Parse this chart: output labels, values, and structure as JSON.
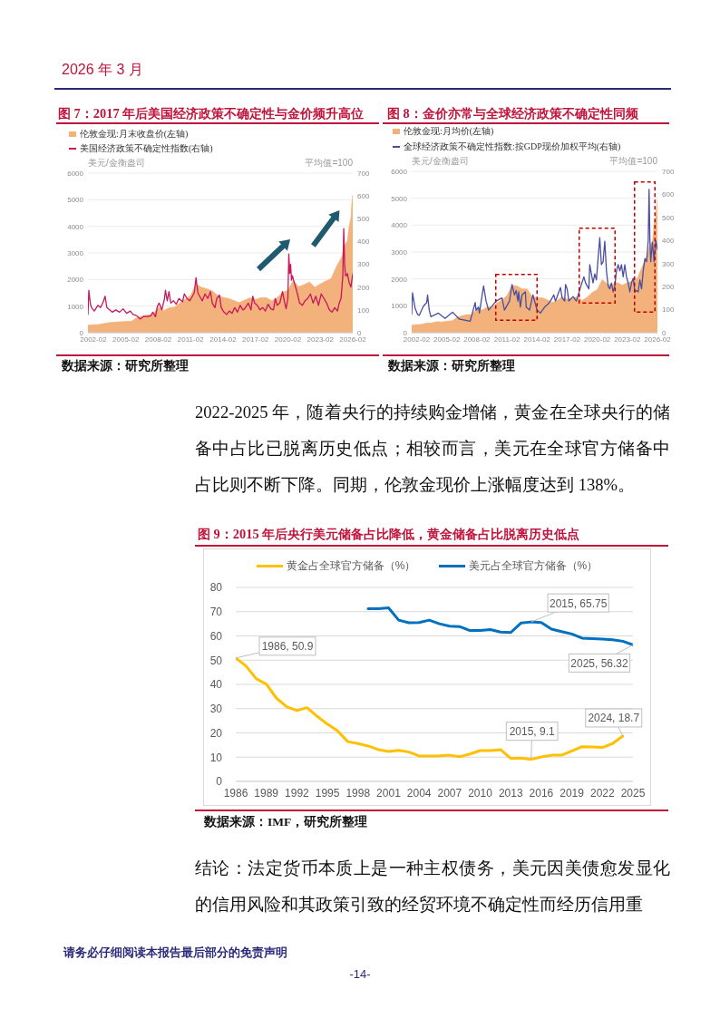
{
  "chart_data": [
    {
      "type": "line",
      "title": "图 7：2017 年后美国经济政策不确定性与金价频升高位",
      "ylabel": "美元/金衡盎司",
      "y2label": "平均值=100",
      "legend": "top left",
      "grid": "y",
      "marker": "none",
      "xlim": [
        "2001-08",
        "2026-02"
      ],
      "xticks": [
        "2002-02",
        "2005-02",
        "2008-02",
        "2011-02",
        "2014-02",
        "2017-02",
        "2020-02",
        "2023-02",
        "2026-02"
      ],
      "ylim": [
        0,
        6000
      ],
      "yticks": [
        0,
        1000,
        2000,
        3000,
        4000,
        5000,
        6000
      ],
      "y2lim": [
        0,
        700
      ],
      "y2ticks": [
        0,
        100,
        200,
        300,
        400,
        500,
        600,
        700
      ],
      "annotations": [
        "2026 年 3 月",
        "数据来源：研究所整理"
      ],
      "series": [
        {
          "name": "伦敦金现:月末收盘价(左轴)",
          "type": "area",
          "color": "#f3b27c",
          "x": [
            "2001-08",
            "2002-02",
            "2002-08",
            "2003-02",
            "2003-08",
            "2004-02",
            "2004-08",
            "2005-02",
            "2005-08",
            "2006-02",
            "2006-08",
            "2007-02",
            "2007-08",
            "2008-02",
            "2008-08",
            "2009-02",
            "2009-08",
            "2010-02",
            "2010-08",
            "2011-02",
            "2011-08",
            "2012-02",
            "2012-08",
            "2013-02",
            "2013-08",
            "2014-02",
            "2014-08",
            "2015-02",
            "2015-08",
            "2016-02",
            "2016-08",
            "2017-02",
            "2017-08",
            "2018-02",
            "2018-08",
            "2019-02",
            "2019-08",
            "2020-02",
            "2020-08",
            "2021-02",
            "2021-08",
            "2022-02",
            "2022-08",
            "2023-02",
            "2023-08",
            "2024-02",
            "2024-08",
            "2025-02",
            "2025-05",
            "2025-08",
            "2025-10",
            "2025-12",
            "2026-01",
            "2026-02"
          ],
          "values": [
            280,
            300,
            310,
            350,
            380,
            400,
            410,
            430,
            430,
            560,
            620,
            670,
            670,
            970,
            830,
            940,
            960,
            1120,
            1250,
            1410,
            1830,
            1710,
            1650,
            1580,
            1400,
            1330,
            1290,
            1210,
            1130,
            1230,
            1310,
            1250,
            1320,
            1320,
            1200,
            1310,
            1520,
            1590,
            1970,
            1730,
            1810,
            1910,
            1710,
            1830,
            1940,
            2040,
            2500,
            2860,
            3290,
            3450,
            4000,
            4320,
            4900,
            5200
          ]
        },
        {
          "name": "美国经济政策不确定性指数(右轴)",
          "axis": "y2",
          "color": "#c8175d",
          "x": [
            "2001-08",
            "2001-09",
            "2001-10",
            "2001-11",
            "2001-12",
            "2002-03",
            "2002-07",
            "2002-10",
            "2003-01",
            "2003-03",
            "2003-05",
            "2003-08",
            "2003-11",
            "2004-03",
            "2004-07",
            "2004-11",
            "2005-03",
            "2005-07",
            "2005-10",
            "2006-02",
            "2006-06",
            "2006-10",
            "2007-02",
            "2007-06",
            "2007-08",
            "2007-11",
            "2008-01",
            "2008-03",
            "2008-06",
            "2008-09",
            "2008-10",
            "2008-12",
            "2009-02",
            "2009-04",
            "2009-07",
            "2009-10",
            "2010-01",
            "2010-05",
            "2010-07",
            "2010-10",
            "2011-01",
            "2011-04",
            "2011-06",
            "2011-08",
            "2011-10",
            "2011-12",
            "2012-03",
            "2012-06",
            "2012-09",
            "2012-12",
            "2013-02",
            "2013-05",
            "2013-07",
            "2013-10",
            "2013-12",
            "2014-03",
            "2014-06",
            "2014-09",
            "2014-12",
            "2015-03",
            "2015-06",
            "2015-09",
            "2015-12",
            "2016-02",
            "2016-06",
            "2016-09",
            "2016-11",
            "2017-01",
            "2017-04",
            "2017-07",
            "2017-10",
            "2018-01",
            "2018-04",
            "2018-07",
            "2018-10",
            "2018-12",
            "2019-02",
            "2019-05",
            "2019-08",
            "2019-10",
            "2019-12",
            "2020-02",
            "2020-03",
            "2020-04",
            "2020-05",
            "2020-06",
            "2020-07",
            "2020-09",
            "2020-12",
            "2021-03",
            "2021-06",
            "2021-09",
            "2021-12",
            "2022-03",
            "2022-06",
            "2022-09",
            "2022-12",
            "2023-03",
            "2023-06",
            "2023-09",
            "2023-12",
            "2024-03",
            "2024-06",
            "2024-09",
            "2024-11",
            "2025-01",
            "2025-03",
            "2025-04",
            "2025-05",
            "2025-06",
            "2025-07",
            "2025-08",
            "2025-10",
            "2025-12",
            "2026-01",
            "2026-02"
          ],
          "values": [
            80,
            186,
            150,
            120,
            110,
            95,
            120,
            110,
            135,
            160,
            110,
            100,
            90,
            100,
            90,
            105,
            85,
            95,
            80,
            75,
            60,
            72,
            70,
            75,
            90,
            70,
            115,
            130,
            100,
            150,
            186,
            140,
            180,
            130,
            140,
            125,
            150,
            135,
            170,
            150,
            140,
            160,
            175,
            241,
            175,
            160,
            140,
            170,
            150,
            180,
            130,
            110,
            150,
            165,
            110,
            90,
            80,
            95,
            85,
            110,
            90,
            120,
            100,
            105,
            130,
            100,
            160,
            130,
            120,
            100,
            110,
            95,
            125,
            105,
            100,
            150,
            120,
            130,
            180,
            140,
            105,
            150,
            345,
            260,
            300,
            230,
            250,
            220,
            180,
            130,
            120,
            140,
            150,
            170,
            130,
            160,
            120,
            170,
            150,
            130,
            100,
            90,
            110,
            95,
            130,
            150,
            250,
            457,
            300,
            250,
            250,
            260,
            220,
            200,
            230,
            258
          ]
        }
      ]
    },
    {
      "type": "line",
      "title": "图 8：金价亦常与全球经济政策不确定性同频",
      "ylabel": "美元/金衡盎司",
      "y2label": "平均值=100",
      "legend": "top left",
      "grid": "y",
      "marker": "none",
      "xlim": [
        "2001-08",
        "2026-02"
      ],
      "xticks": [
        "2002-02",
        "2005-02",
        "2008-02",
        "2011-02",
        "2014-02",
        "2017-02",
        "2020-02",
        "2023-02",
        "2026-02"
      ],
      "ylim": [
        0,
        6000
      ],
      "yticks": [
        0,
        1000,
        2000,
        3000,
        4000,
        5000,
        6000
      ],
      "y2lim": [
        0,
        700
      ],
      "y2ticks": [
        0,
        100,
        200,
        300,
        400,
        500,
        600,
        700
      ],
      "annotations": [
        "数据来源：研究所整理"
      ],
      "series": [
        {
          "name": "伦敦金现:月均价(左轴)",
          "type": "area",
          "color": "#f3b27c",
          "x": [
            "2001-08",
            "2002-02",
            "2002-08",
            "2003-02",
            "2003-08",
            "2004-02",
            "2004-08",
            "2005-02",
            "2005-08",
            "2006-02",
            "2006-08",
            "2007-02",
            "2007-08",
            "2008-02",
            "2008-08",
            "2009-02",
            "2009-08",
            "2010-02",
            "2010-08",
            "2011-02",
            "2011-08",
            "2012-02",
            "2012-08",
            "2013-02",
            "2013-08",
            "2014-02",
            "2014-08",
            "2015-02",
            "2015-08",
            "2016-02",
            "2016-08",
            "2017-02",
            "2017-08",
            "2018-02",
            "2018-08",
            "2019-02",
            "2019-08",
            "2020-02",
            "2020-08",
            "2021-02",
            "2021-08",
            "2022-02",
            "2022-08",
            "2023-02",
            "2023-08",
            "2024-02",
            "2024-08",
            "2025-02",
            "2025-05",
            "2025-08",
            "2025-10",
            "2025-12",
            "2026-01",
            "2026-02"
          ],
          "values": [
            280,
            300,
            310,
            360,
            360,
            410,
            400,
            430,
            440,
            560,
            630,
            670,
            670,
            920,
            840,
            950,
            950,
            1100,
            1220,
            1380,
            1760,
            1740,
            1630,
            1630,
            1350,
            1300,
            1300,
            1230,
            1120,
            1200,
            1340,
            1240,
            1290,
            1330,
            1200,
            1320,
            1500,
            1600,
            1970,
            1810,
            1790,
            1860,
            1770,
            1860,
            1920,
            2030,
            2470,
            2900,
            3280,
            3370,
            4050,
            4310,
            4600,
            5000
          ]
        },
        {
          "name": "全球经济政策不确定性指数:按GDP现价加权平均(右轴)",
          "axis": "y2",
          "color": "#4a4fa0",
          "x": [
            "2001-08",
            "2001-09",
            "2001-12",
            "2002-03",
            "2002-05",
            "2002-10",
            "2003-02",
            "2003-03",
            "2003-05",
            "2003-07",
            "2004-04",
            "2004-12",
            "2005-09",
            "2006-05",
            "2007-06",
            "2007-12",
            "2008-01",
            "2008-04",
            "2008-05",
            "2008-10",
            "2009-01",
            "2009-04",
            "2010-01",
            "2010-08",
            "2010-11",
            "2011-05",
            "2011-08",
            "2011-11",
            "2012-01",
            "2012-03",
            "2012-04",
            "2012-06",
            "2012-08",
            "2012-12",
            "2013-01",
            "2013-05",
            "2013-09",
            "2014-02",
            "2014-06",
            "2014-11",
            "2015-03",
            "2015-06",
            "2015-10",
            "2015-12",
            "2016-06",
            "2016-08",
            "2016-11",
            "2016-12",
            "2017-02",
            "2017-04",
            "2017-09",
            "2018-01",
            "2018-07",
            "2018-10",
            "2018-12",
            "2019-04",
            "2019-05",
            "2019-07",
            "2019-09",
            "2019-11",
            "2020-01",
            "2020-03",
            "2020-05",
            "2020-07",
            "2020-09",
            "2020-11",
            "2021-01",
            "2021-03",
            "2021-05",
            "2021-07",
            "2021-09",
            "2021-11",
            "2022-01",
            "2022-03",
            "2022-05",
            "2022-07",
            "2022-09",
            "2022-11",
            "2023-01",
            "2023-03",
            "2023-05",
            "2023-07",
            "2023-09",
            "2023-11",
            "2024-01",
            "2024-03",
            "2024-05",
            "2024-07",
            "2024-09",
            "2024-11",
            "2025-01",
            "2025-03",
            "2025-04",
            "2025-05",
            "2025-06",
            "2025-08",
            "2025-10",
            "2025-12",
            "2026-02"
          ],
          "values": [
            80,
            173,
            107,
            80,
            75,
            115,
            131,
            164,
            98,
            69,
            85,
            62,
            89,
            59,
            50,
            131,
            98,
            111,
            85,
            203,
            137,
            98,
            137,
            151,
            98,
            137,
            209,
            164,
            183,
            137,
            177,
            111,
            164,
            177,
            111,
            98,
            164,
            98,
            85,
            111,
            124,
            137,
            164,
            137,
            196,
            151,
            137,
            209,
            190,
            137,
            157,
            137,
            209,
            242,
            216,
            190,
            295,
            255,
            216,
            255,
            229,
            321,
            412,
            295,
            308,
            397,
            268,
            203,
            190,
            216,
            177,
            203,
            268,
            295,
            268,
            295,
            242,
            295,
            242,
            216,
            177,
            216,
            236,
            177,
            183,
            177,
            229,
            190,
            268,
            321,
            308,
            400,
            622,
            399,
            308,
            393,
            308,
            399,
            360
          ]
        }
      ]
    },
    {
      "type": "line",
      "title": "图 9：2015 年后央行美元储备占比降低，黄金储备占比脱离历史低点",
      "legend": "top",
      "grid": "y",
      "marker": "none",
      "x": [
        1986,
        1987,
        1988,
        1989,
        1990,
        1991,
        1992,
        1993,
        1994,
        1995,
        1996,
        1997,
        1998,
        1999,
        2000,
        2001,
        2002,
        2003,
        2004,
        2005,
        2006,
        2007,
        2008,
        2009,
        2010,
        2011,
        2012,
        2013,
        2014,
        2015,
        2016,
        2017,
        2018,
        2019,
        2020,
        2021,
        2022,
        2023,
        2024,
        2025
      ],
      "xlim": [
        1986,
        2025
      ],
      "xticks": [
        1986,
        1989,
        1992,
        1995,
        1998,
        2001,
        2004,
        2007,
        2010,
        2013,
        2016,
        2019,
        2022,
        2025
      ],
      "ylim": [
        0,
        80
      ],
      "yticks": [
        0,
        10,
        20,
        30,
        40,
        50,
        60,
        70,
        80
      ],
      "annotations": [
        "2022-2025 年，随着央行的持续购金增储，黄金在全球央行的储备中占比已脱离历史低点；相较而言，美元在全球官方储备中占比则不断下降。同期，伦敦金现价上涨幅度达到 138%。",
        "数据来源：IMF，研究所整理",
        "结论：法定货币本质上是一种主权债务，美元因美债愈发显化的信用风险和其政策引致的经贸环境不确定性而经历信用重",
        "请务必仔细阅读本报告最后部分的免责声明",
        "-14-"
      ],
      "series": [
        {
          "name": "黄金占全球官方储备（%）",
          "color": "#ffc000",
          "values": [
            50.9,
            47.6,
            42.4,
            40.1,
            34.3,
            30.8,
            29.2,
            30.4,
            26.8,
            23.6,
            20.8,
            16.4,
            15.6,
            14.6,
            13.1,
            12.3,
            12.8,
            12.1,
            10.5,
            10.5,
            10.6,
            10.8,
            10.2,
            11.3,
            12.7,
            12.7,
            13.1,
            9.5,
            9.6,
            9.1,
            10.1,
            10.8,
            10.8,
            12.6,
            14.3,
            14.2,
            14.0,
            15.6,
            18.7,
            null
          ],
          "value_labels": [
            "1986, 50.9",
            null,
            null,
            null,
            null,
            null,
            null,
            null,
            null,
            null,
            null,
            null,
            null,
            null,
            null,
            null,
            null,
            null,
            null,
            null,
            null,
            null,
            null,
            null,
            null,
            null,
            null,
            null,
            null,
            "2015, 9.1",
            null,
            null,
            null,
            null,
            null,
            null,
            null,
            null,
            "2024, 18.7",
            null
          ]
        },
        {
          "name": "美元占全球官方储备（%）",
          "color": "#0070c0",
          "values": [
            null,
            null,
            null,
            null,
            null,
            null,
            null,
            null,
            null,
            null,
            null,
            null,
            null,
            71.2,
            71.2,
            71.6,
            66.5,
            65.4,
            65.5,
            66.5,
            65.0,
            64.0,
            63.8,
            62.2,
            62.2,
            62.6,
            61.6,
            61.4,
            65.3,
            65.75,
            65.5,
            62.8,
            61.8,
            60.8,
            59.1,
            58.9,
            58.7,
            58.4,
            57.8,
            56.32
          ],
          "value_labels": [
            null,
            null,
            null,
            null,
            null,
            null,
            null,
            null,
            null,
            null,
            null,
            null,
            null,
            null,
            null,
            null,
            null,
            null,
            null,
            null,
            null,
            null,
            null,
            null,
            null,
            null,
            null,
            null,
            null,
            "2015, 65.75",
            null,
            null,
            null,
            null,
            null,
            null,
            null,
            null,
            null,
            "2025, 56.32"
          ]
        }
      ]
    }
  ]
}
